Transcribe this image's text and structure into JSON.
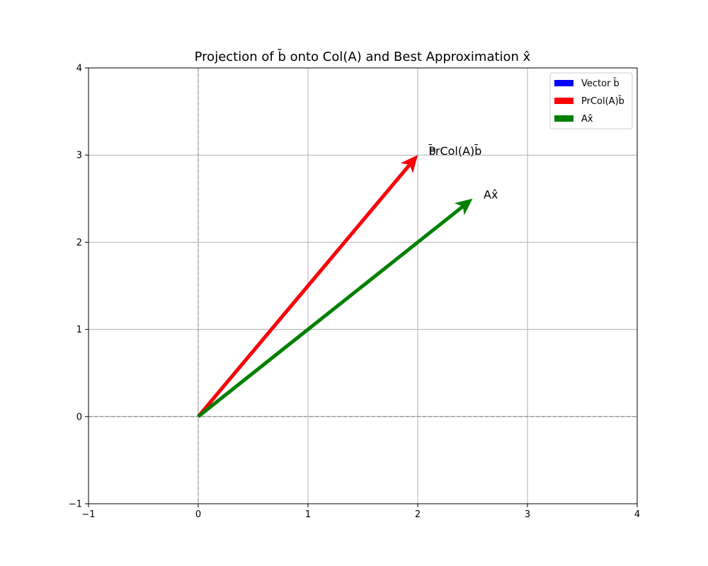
{
  "chart_data": {
    "type": "vector",
    "title": "Projection of b̄ onto Col(A) and Best Approximation x̂",
    "xlabel": "",
    "ylabel": "",
    "xlim": [
      -1,
      4
    ],
    "ylim": [
      -1,
      4
    ],
    "xticks": [
      -1,
      0,
      1,
      2,
      3,
      4
    ],
    "yticks": [
      -1,
      0,
      1,
      2,
      3,
      4
    ],
    "xtick_labels": [
      "−1",
      "0",
      "1",
      "2",
      "3",
      "4"
    ],
    "ytick_labels": [
      "−1",
      "0",
      "1",
      "2",
      "3",
      "4"
    ],
    "grid": true,
    "legend_position": "top-right",
    "series": [
      {
        "name": "Vector b̄",
        "color": "#0000ff",
        "origin": [
          0,
          0
        ],
        "vector": [
          2,
          3
        ],
        "label": "b̄"
      },
      {
        "name": "PrCol(A)b̄",
        "color": "#ff0000",
        "origin": [
          0,
          0
        ],
        "vector": [
          2,
          3
        ],
        "label": "PrCol(A)b̄"
      },
      {
        "name": "Ax̂",
        "color": "#008000",
        "origin": [
          0,
          0
        ],
        "vector": [
          2.5,
          2.5
        ],
        "label": "Ax̂"
      }
    ]
  }
}
